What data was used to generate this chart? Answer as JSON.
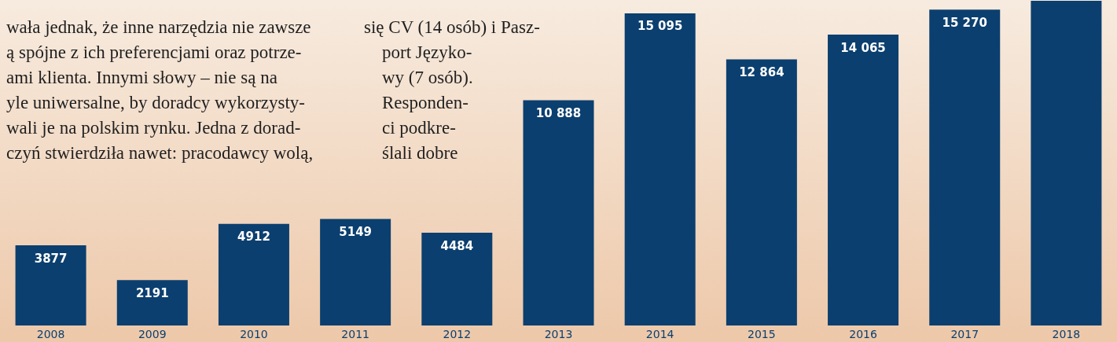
{
  "chart_data": {
    "type": "bar",
    "categories": [
      "2008",
      "2009",
      "2010",
      "2011",
      "2012",
      "2013",
      "2014",
      "2015",
      "2016",
      "2017",
      "2018"
    ],
    "values": [
      3877,
      2191,
      4912,
      5149,
      4484,
      10888,
      15095,
      12864,
      14065,
      15270,
      15700
    ],
    "value_labels": [
      "3877",
      "2191",
      "4912",
      "5149",
      "4484",
      "10 888",
      "15 095",
      "12 864",
      "14 065",
      "15 270",
      null
    ],
    "color": "#0b3f6f",
    "ylim": [
      0,
      15700
    ],
    "tick_labels": "x",
    "annotations": [
      "wała jednak, że inne narzędzia nie zawsze\ną spójne z ich preferencjami oraz potrze-\nami klienta. Innymi słowy – nie są na\nyle uniwersalne, by doradcy wykorzysty-\nwali je na polskim rynku. Jedna z dorad-\nczyń stwierdziła nawet: pracodawcy wolą,",
      "się CV (14 osób) i Pasz-\n    port Języko-\n    wy (7 osób).\n    Responden-\n    ci podkre-\n    ślali dobre"
    ]
  }
}
